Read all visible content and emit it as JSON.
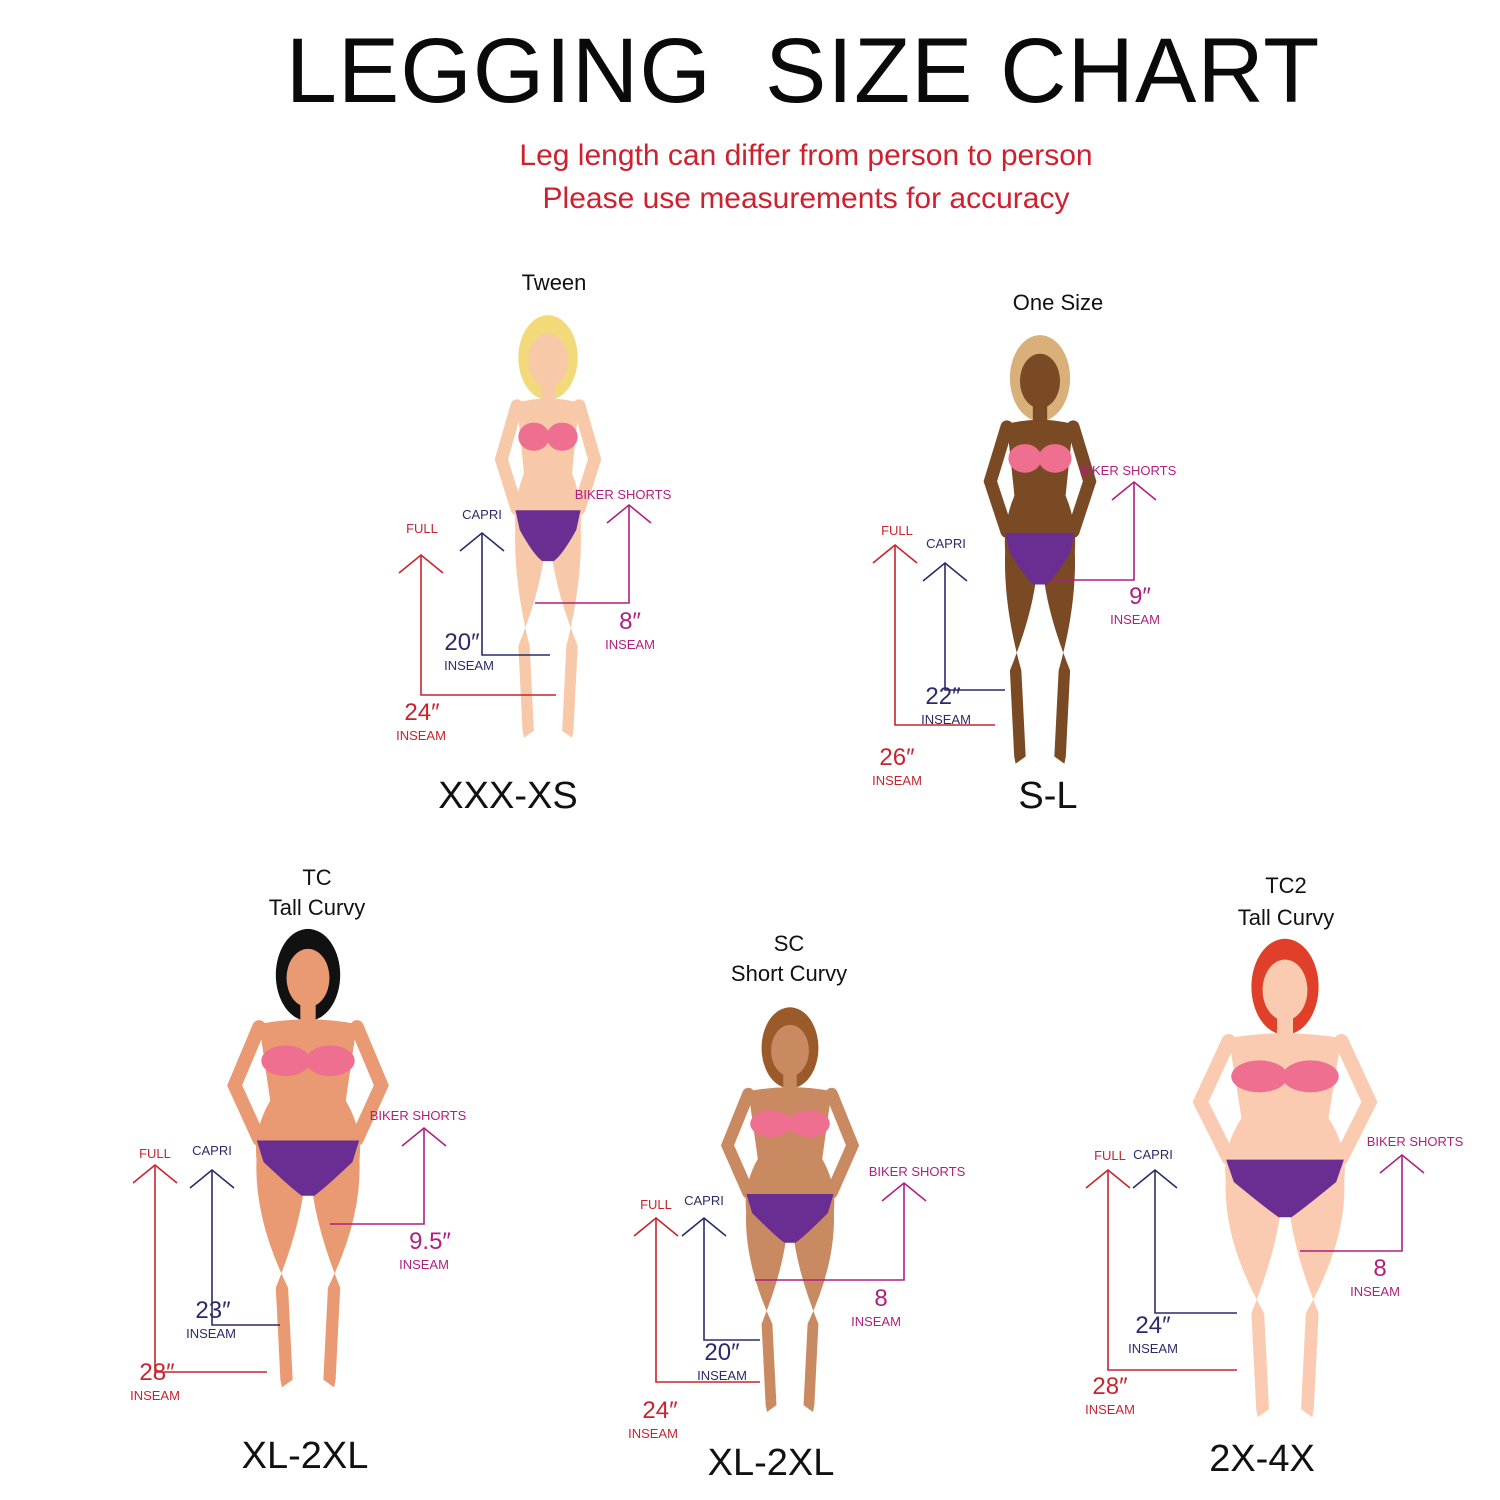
{
  "title": "LEGGING  SIZE CHART",
  "subtitle": [
    "Leg length can differ from person to person",
    "Please use measurements for accuracy"
  ],
  "colors": {
    "full": "#c8242e",
    "capri": "#2b2b6b",
    "biker": "#b0207f",
    "subtitle": "#cf2030",
    "bra": "#ee6f8f",
    "briefs": "#6a2d91"
  },
  "panels": [
    {
      "heading": [
        "Tween"
      ],
      "size": "XXX-XS",
      "skin": "#f8c9a8",
      "hair": "#f2d97a",
      "full": {
        "label": "FULL",
        "value": "24″",
        "unit": "INSEAM"
      },
      "capri": {
        "label": "CAPRI",
        "value": "20″",
        "unit": "INSEAM"
      },
      "biker": {
        "label": "BIKER SHORTS",
        "value": "8″",
        "unit": "INSEAM"
      }
    },
    {
      "heading": [
        "One Size"
      ],
      "size": "S-L",
      "skin": "#7a4a24",
      "hair": "#d9b07a",
      "full": {
        "label": "FULL",
        "value": "26″",
        "unit": "INSEAM"
      },
      "capri": {
        "label": "CAPRI",
        "value": "22″",
        "unit": "INSEAM"
      },
      "biker": {
        "label": "BIKER SHORTS",
        "value": "9″",
        "unit": "INSEAM"
      }
    },
    {
      "heading": [
        "TC",
        "Tall Curvy"
      ],
      "size": "XL-2XL",
      "skin": "#e99a72",
      "hair": "#111111",
      "full": {
        "label": "FULL",
        "value": "28″",
        "unit": "INSEAM"
      },
      "capri": {
        "label": "CAPRI",
        "value": "23″",
        "unit": "INSEAM"
      },
      "biker": {
        "label": "BIKER SHORTS",
        "value": "9.5″",
        "unit": "INSEAM"
      }
    },
    {
      "heading": [
        "SC",
        "Short Curvy"
      ],
      "size": "XL-2XL",
      "skin": "#c98a62",
      "hair": "#9a5a2a",
      "full": {
        "label": "FULL",
        "value": "24″",
        "unit": "INSEAM"
      },
      "capri": {
        "label": "CAPRI",
        "value": "20″",
        "unit": "INSEAM"
      },
      "biker": {
        "label": "BIKER SHORTS",
        "value": "8",
        "unit": "INSEAM"
      }
    },
    {
      "heading": [
        "TC2",
        "Tall Curvy"
      ],
      "size": "2X-4X",
      "skin": "#fbcbb1",
      "hair": "#e0402a",
      "full": {
        "label": "FULL",
        "value": "28″",
        "unit": "INSEAM"
      },
      "capri": {
        "label": "CAPRI",
        "value": "24″",
        "unit": "INSEAM"
      },
      "biker": {
        "label": "BIKER SHORTS",
        "value": "8",
        "unit": "INSEAM"
      }
    }
  ]
}
